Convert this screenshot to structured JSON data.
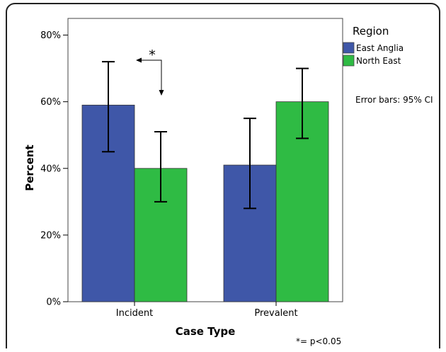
{
  "chart_data": {
    "type": "bar",
    "categories": [
      "Incident",
      "Prevalent"
    ],
    "series": [
      {
        "name": "East Anglia",
        "color": "#3f57a8",
        "values": [
          59,
          41
        ],
        "ci_low": [
          45,
          28
        ],
        "ci_high": [
          72,
          55
        ]
      },
      {
        "name": "North East",
        "color": "#2fbb44",
        "values": [
          40,
          60
        ],
        "ci_low": [
          30,
          49
        ],
        "ci_high": [
          51,
          70
        ]
      }
    ],
    "xlabel": "Case Type",
    "ylabel": "Percent",
    "ylim": [
      0,
      85
    ],
    "y_ticks": [
      0,
      20,
      40,
      60,
      80
    ],
    "y_tick_labels": [
      "0%",
      "20%",
      "40%",
      "60%",
      "80%"
    ],
    "legend_title": "Region",
    "legend_position": "right",
    "error_bar_note": "Error bars: 95% CI",
    "significance_marker": "*",
    "significance_note": "*= p<0.05",
    "grid": false
  }
}
